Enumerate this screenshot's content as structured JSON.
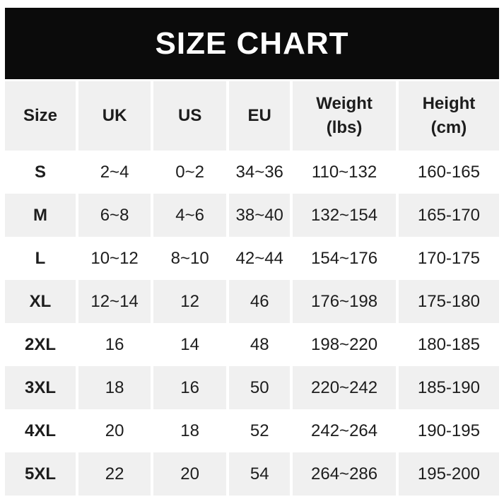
{
  "banner": {
    "title": "SIZE CHART"
  },
  "chart_data": {
    "type": "table",
    "title": "SIZE CHART",
    "columns": [
      "Size",
      "UK",
      "US",
      "EU",
      "Weight\n(lbs)",
      "Height\n(cm)"
    ],
    "rows": [
      [
        "S",
        "2~4",
        "0~2",
        "34~36",
        "110~132",
        "160-165"
      ],
      [
        "M",
        "6~8",
        "4~6",
        "38~40",
        "132~154",
        "165-170"
      ],
      [
        "L",
        "10~12",
        "8~10",
        "42~44",
        "154~176",
        "170-175"
      ],
      [
        "XL",
        "12~14",
        "12",
        "46",
        "176~198",
        "175-180"
      ],
      [
        "2XL",
        "16",
        "14",
        "48",
        "198~220",
        "180-185"
      ],
      [
        "3XL",
        "18",
        "16",
        "50",
        "220~242",
        "185-190"
      ],
      [
        "4XL",
        "20",
        "18",
        "52",
        "242~264",
        "190-195"
      ],
      [
        "5XL",
        "22",
        "20",
        "54",
        "264~286",
        "195-200"
      ]
    ],
    "layout": {
      "striping": "alternating rows, odd white / even light-gray",
      "column_gaps": "white vertical gutters between columns",
      "legend": "none",
      "grid": "off"
    }
  },
  "colors": {
    "banner_bg": "#0b0b0b",
    "banner_text": "#ffffff",
    "stripe": "#f0f0f0",
    "text": "#1d1d1d",
    "page_bg": "#ffffff"
  }
}
